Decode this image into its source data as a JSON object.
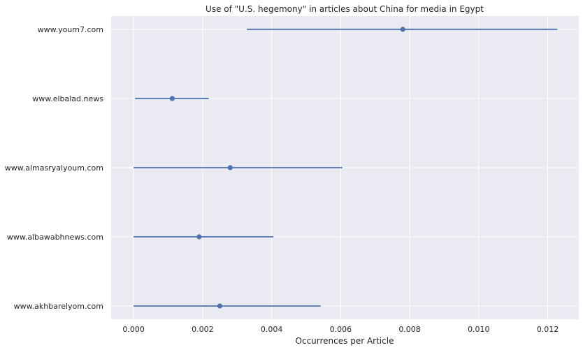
{
  "chart_data": {
    "type": "errorbar",
    "title": "Use of \"U.S. hegemony\" in articles about China for media in Egypt",
    "xlabel": "Occurrences per Article",
    "ylabel": "",
    "xlim": [
      -0.00065,
      0.0129
    ],
    "xticks": [
      "0.000",
      "0.002",
      "0.004",
      "0.006",
      "0.008",
      "0.010",
      "0.012"
    ],
    "xtick_values": [
      0,
      0.002,
      0.004,
      0.006,
      0.008,
      0.01,
      0.012
    ],
    "grid": true,
    "colors": {
      "background": "#eaeaf2",
      "grid": "#ffffff",
      "series": "#4c72b0"
    },
    "points": [
      {
        "label": "www.youm7.com",
        "value": 0.0078,
        "low": 0.00328,
        "high": 0.01228
      },
      {
        "label": "www.elbalad.news",
        "value": 0.00112,
        "low": 4e-05,
        "high": 0.00218
      },
      {
        "label": "www.almasryalyoum.com",
        "value": 0.0028,
        "low": 0.0,
        "high": 0.00605
      },
      {
        "label": "www.albawabhnews.com",
        "value": 0.0019,
        "low": 0.0,
        "high": 0.00405
      },
      {
        "label": "www.akhbarelyom.com",
        "value": 0.0025,
        "low": 0.0,
        "high": 0.00542
      }
    ]
  }
}
